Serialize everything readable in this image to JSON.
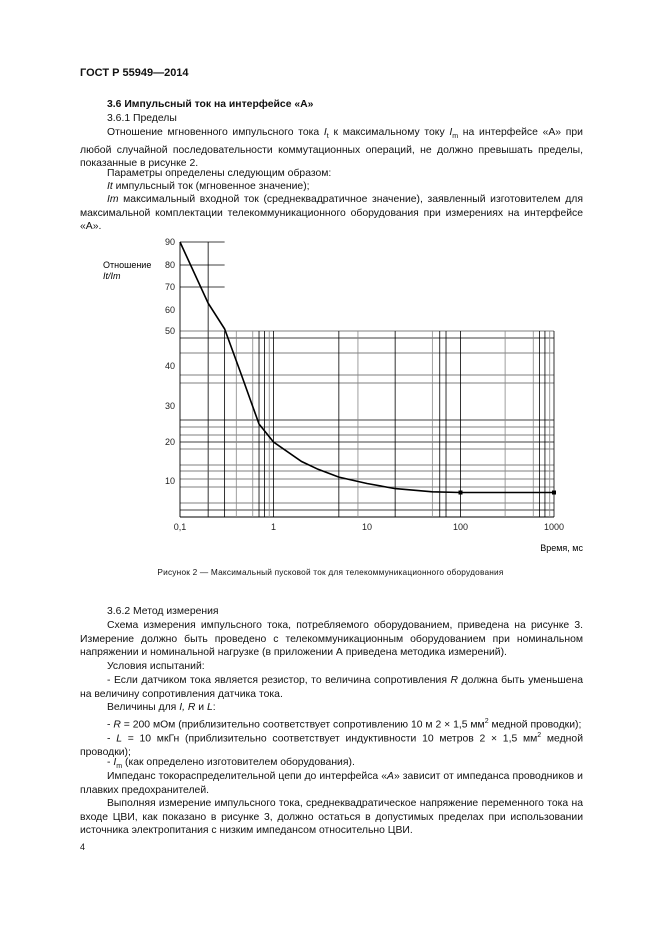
{
  "header": "ГОСТ Р 55949—2014",
  "section": {
    "heading": "3.6 Импульсный ток на интерфейсе «А»",
    "sub1": "3.6.1 Пределы",
    "p1_a": "Отношение мгновенного импульсного тока ",
    "p1_it": "I",
    "p1_it_sub": "t",
    "p1_b": " к максимальному току ",
    "p1_im": "I",
    "p1_im_sub": "m",
    "p1_c": " на интерфейсе «А» при любой случайной последовательности коммутационных операций, не должно превышать пределы, показанные в рисунке 2.",
    "p2": "Параметры определены следующим образом:",
    "p3_sym": "It",
    "p3": " импульсный ток (мгновенное значение);",
    "p4_sym": "Im",
    "p4": " максимальный входной ток (среднеквадратичное значение), заявленный изготовителем для максимальной комплектации телекоммуникационного оборудования при измерениях на интерфейсе «А»."
  },
  "chart_data": {
    "type": "line",
    "title": "",
    "ylabel": "Отношение",
    "ylabel2": "It/Im",
    "xlabel": "Время, мс",
    "x_scale": "log",
    "xlim": [
      0.1,
      1000
    ],
    "ylim": [
      0,
      90
    ],
    "grid": true,
    "x_ticks": [
      "0,1",
      "1",
      "10",
      "100",
      "1000"
    ],
    "y_ticks": [
      "90",
      "80",
      "70",
      "60",
      "50",
      "40",
      "30",
      "20",
      "10"
    ],
    "series": [
      {
        "x": [
          0.1,
          0.2,
          0.3,
          0.45,
          0.7,
          1,
          2,
          3,
          5,
          10,
          20,
          50,
          100,
          1000
        ],
        "y": [
          90,
          63,
          51,
          38,
          25,
          20,
          15,
          13,
          11,
          9.3,
          7.9,
          7.0,
          6.8,
          6.8
        ]
      }
    ],
    "markers": [
      {
        "x": 100,
        "y": 6.8
      },
      {
        "x": 1000,
        "y": 6.8
      }
    ],
    "caption": "Рисунок  2 — Максимальный пусковой ток для телекоммуникационного оборудования"
  },
  "method": {
    "heading": "3.6.2 Метод измерения",
    "p1": "Схема измерения импульсного тока, потребляемого оборудованием, приведена на рисунке 3. Измерение должно быть проведено с телекоммуникационным оборудованием при номинальном напряжении и номинальной нагрузке (в приложении А приведена методика измерений).",
    "p2": "Условия испытаний:",
    "p3_a": "- Если датчиком тока является резистор, то величина сопротивления ",
    "p3_r": "R",
    "p3_b": " должна быть уменьшена на величину сопротивления датчика тока.",
    "p4_a": "Величины для ",
    "p4_i": "I, R",
    "p4_b": " и ",
    "p4_l": "L",
    "p4_c": ":",
    "p5_a": "- ",
    "p5_r": "R",
    "p5_b": " = 200 мОм (приблизительно соответствует сопротивлению 10 м 2 × 1,5 мм",
    "p5_sup": "2",
    "p5_c": " медной проводки);",
    "p6_a": "- ",
    "p6_l": "L",
    "p6_b": " = 10 мкГн (приблизительно соответствует индуктивности 10 метров 2 × 1,5 мм",
    "p6_sup": "2",
    "p6_c": " медной проводки);",
    "p7_a": "- ",
    "p7_i": "I",
    "p7_sub": "m",
    "p7_b": " (как определено изготовителем оборудования).",
    "p8_a": "Импеданс токораспределительной цепи до интерфейса «",
    "p8_a2": "А",
    "p8_b": "» зависит от импеданса проводников и плавких предохранителей.",
    "p9": "Выполняя измерение импульсного тока, среднеквадратическое напряжение переменного тока на входе ЦВИ, как показано в рисунке 3, должно остаться в допустимых пределах при использовании источника электропитания с низким импедансом относительно ЦВИ."
  },
  "page_number": "4"
}
